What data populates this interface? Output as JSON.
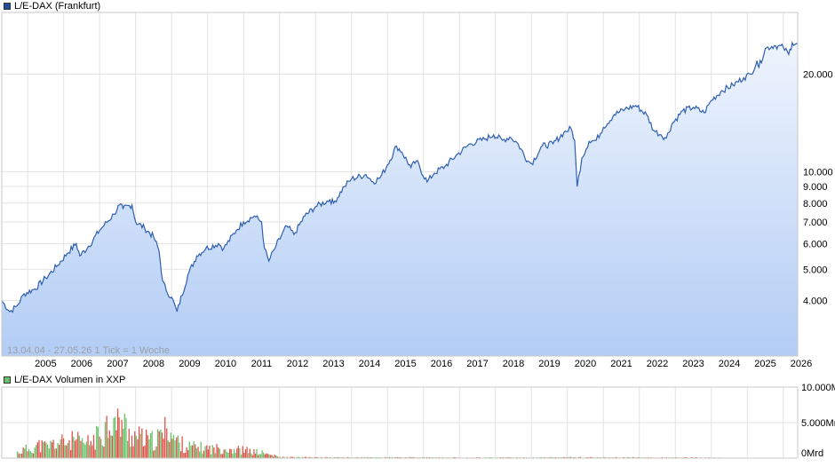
{
  "chart_data": [
    {
      "type": "area",
      "legend": "L/E-DAX (Frankfurt)",
      "info": "13.04.04 - 27.05.26    1 Tick = 1 Woche",
      "scale": "log",
      "y_ticks": [
        4000,
        5000,
        6000,
        7000,
        8000,
        9000,
        10000,
        20000
      ],
      "y_tick_labels": [
        "4.000",
        "5.000",
        "6.000",
        "7.000",
        "8.000",
        "9.000",
        "10.000",
        "20.000"
      ],
      "ylim": [
        2700,
        31000
      ],
      "xlim": [
        2004.28,
        2026.4
      ],
      "x_tick_labels": [
        "2005",
        "2006",
        "2007",
        "2008",
        "2009",
        "2010",
        "2011",
        "2012",
        "2013",
        "2014",
        "2015",
        "2016",
        "2017",
        "2018",
        "2019",
        "2020",
        "2021",
        "2022",
        "2023",
        "2024",
        "2025",
        "2026"
      ],
      "colors": {
        "line": "#2f5fb0",
        "fill_top": "#eef4fd",
        "fill_bottom": "#b3cdf5",
        "legend": "#1f4e9f"
      },
      "series": [
        {
          "x": [
            2004.28,
            2004.5,
            2004.7,
            2004.9,
            2005.2,
            2005.5,
            2005.8,
            2006.1,
            2006.35,
            2006.45,
            2006.7,
            2007.0,
            2007.4,
            2007.55,
            2007.65,
            2007.9,
            2008.0,
            2008.25,
            2008.5,
            2008.65,
            2008.75,
            2008.85,
            2009.0,
            2009.15,
            2009.45,
            2009.7,
            2009.95,
            2010.3,
            2010.45,
            2010.8,
            2011.0,
            2011.3,
            2011.5,
            2011.58,
            2011.7,
            2011.9,
            2012.2,
            2012.4,
            2012.7,
            2013.0,
            2013.4,
            2013.5,
            2013.8,
            2014.0,
            2014.4,
            2014.6,
            2014.8,
            2015.0,
            2015.25,
            2015.4,
            2015.65,
            2015.8,
            2016.1,
            2016.3,
            2016.6,
            2016.9,
            2017.3,
            2017.7,
            2017.95,
            2018.2,
            2018.4,
            2018.6,
            2018.9,
            2019.0,
            2019.3,
            2019.6,
            2019.9,
            2020.1,
            2020.2,
            2020.27,
            2020.4,
            2020.6,
            2020.8,
            2021.0,
            2021.3,
            2021.6,
            2021.9,
            2022.2,
            2022.4,
            2022.6,
            2022.75,
            2022.9,
            2023.2,
            2023.5,
            2023.8,
            2024.0,
            2024.3,
            2024.6,
            2024.9,
            2025.1,
            2025.27,
            2025.32,
            2025.5,
            2025.75,
            2026.0,
            2026.15,
            2026.25,
            2026.4
          ],
          "y": [
            4000,
            3700,
            3850,
            4200,
            4350,
            4700,
            5100,
            5600,
            6000,
            5500,
            5900,
            6600,
            7400,
            7900,
            7700,
            7900,
            7000,
            6700,
            6300,
            5700,
            4600,
            4300,
            4100,
            3700,
            4800,
            5500,
            5800,
            6000,
            5800,
            6600,
            7000,
            7300,
            7000,
            5800,
            5300,
            5900,
            6800,
            6400,
            7300,
            7800,
            8200,
            8000,
            9000,
            9500,
            9800,
            9300,
            9600,
            10500,
            12000,
            11500,
            10300,
            10800,
            9300,
            9900,
            10400,
            11200,
            12200,
            12600,
            13000,
            12500,
            12800,
            12300,
            10800,
            10600,
            12000,
            12200,
            13200,
            13600,
            12500,
            9000,
            11000,
            12400,
            12500,
            13700,
            15000,
            15600,
            16000,
            15000,
            13400,
            13000,
            12700,
            14000,
            15400,
            15800,
            15200,
            16600,
            17800,
            18500,
            19500,
            20000,
            22000,
            21000,
            24000,
            24500,
            24200,
            23000,
            25000,
            24800
          ],
          "name": "L/E-DAX (Frankfurt)"
        }
      ]
    },
    {
      "type": "bar",
      "legend": "L/E-DAX Volumen in XXP",
      "y_tick_labels": [
        "10.000Mrd",
        "5.000Mrd",
        "0Mrd"
      ],
      "y_ticks": [
        10000,
        5000,
        0
      ],
      "ylim": [
        0,
        10000
      ],
      "unit": "Mio",
      "colors": {
        "up": "#6cc26c",
        "down": "#e0534a",
        "legend": "#6cc26c"
      },
      "series": [
        {
          "x": [
            2004.7,
            2004.9,
            2005.1,
            2005.3,
            2005.5,
            2005.7,
            2005.9,
            2006.1,
            2006.3,
            2006.5,
            2006.7,
            2006.9,
            2007.1,
            2007.3,
            2007.45,
            2007.6,
            2007.8,
            2008.0,
            2008.2,
            2008.4,
            2008.6,
            2008.8,
            2008.85,
            2009.0,
            2009.2,
            2009.4,
            2009.6,
            2009.8,
            2010.0,
            2010.2,
            2010.4,
            2010.6,
            2010.8,
            2011.0,
            2011.2,
            2011.5,
            2012.0,
            2013.0,
            2014.0,
            2015.0,
            2016.0,
            2017.0,
            2018.0,
            2019.0,
            2020.0,
            2021.0,
            2022.0,
            2023.0,
            2024.0,
            2025.0
          ],
          "y": [
            900,
            1300,
            1600,
            2000,
            1800,
            2200,
            2400,
            2500,
            2800,
            2200,
            2400,
            3200,
            4500,
            6200,
            5000,
            5800,
            3700,
            3400,
            3000,
            2600,
            3000,
            4200,
            6000,
            3300,
            2400,
            1800,
            1700,
            1600,
            1500,
            1400,
            1600,
            1500,
            1300,
            1200,
            1000,
            800,
            150,
            120,
            110,
            120,
            100,
            90,
            100,
            90,
            130,
            110,
            100,
            90,
            80,
            10
          ]
        }
      ]
    }
  ]
}
